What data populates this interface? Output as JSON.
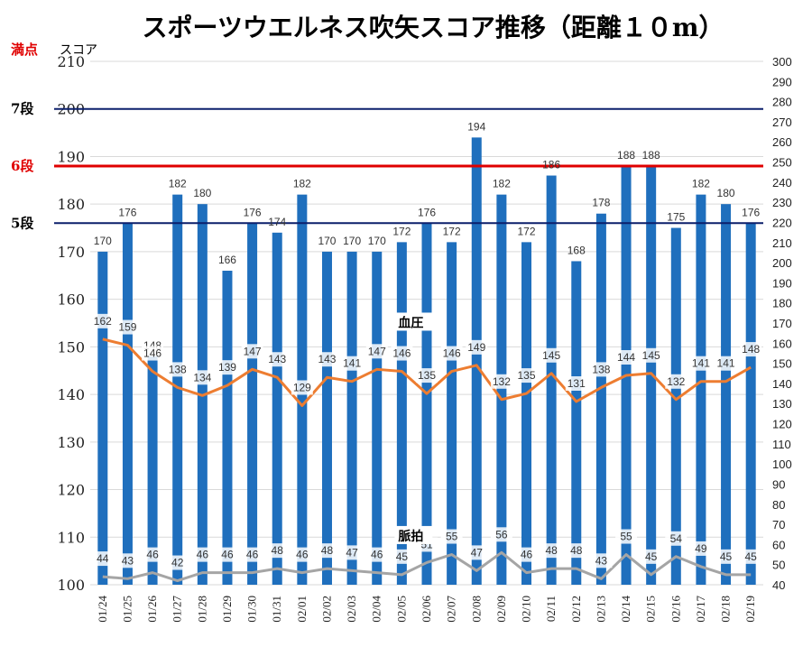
{
  "chart_data": {
    "type": "bar",
    "title": "スポーツウエルネス吹矢スコア推移（距離１０m）",
    "ylabel_left": "スコア",
    "full_score_label": "満点",
    "ylim_left": [
      100,
      210
    ],
    "ylim_right": [
      40,
      300
    ],
    "categories": [
      "01/24",
      "01/25",
      "01/26",
      "01/27",
      "01/28",
      "01/29",
      "01/30",
      "01/31",
      "02/01",
      "02/02",
      "02/03",
      "02/04",
      "02/05",
      "02/06",
      "02/07",
      "02/08",
      "02/09",
      "02/10",
      "02/11",
      "02/12",
      "02/13",
      "02/14",
      "02/15",
      "02/16",
      "02/17",
      "02/18",
      "02/19"
    ],
    "series": [
      {
        "type": "bar",
        "axis": "left",
        "color": "#1f6fbd",
        "values": [
          170,
          176,
          148,
          182,
          180,
          166,
          176,
          174,
          182,
          170,
          170,
          170,
          172,
          176,
          172,
          194,
          182,
          172,
          186,
          168,
          178,
          188,
          188,
          175,
          182,
          180,
          176
        ]
      },
      {
        "type": "line",
        "axis": "right",
        "name": "血圧",
        "color": "#ed7d31",
        "values": [
          162,
          159,
          146,
          138,
          134,
          139,
          147,
          143,
          129,
          143,
          141,
          147,
          146,
          135,
          146,
          149,
          132,
          135,
          145,
          131,
          138,
          144,
          145,
          132,
          141,
          141,
          148
        ]
      },
      {
        "type": "line",
        "axis": "right",
        "name": "脈拍",
        "color": "#a5a5a5",
        "values": [
          44,
          43,
          46,
          42,
          46,
          46,
          46,
          48,
          46,
          48,
          47,
          46,
          45,
          51,
          55,
          47,
          56,
          46,
          48,
          48,
          43,
          55,
          45,
          54,
          49,
          45,
          45
        ]
      }
    ],
    "reference_lines": [
      {
        "label": "7段",
        "value": 200,
        "color": "#0b1f6b"
      },
      {
        "label": "6段",
        "value": 188,
        "color": "#e00000"
      },
      {
        "label": "5段",
        "value": 176,
        "color": "#0b1f6b"
      }
    ]
  }
}
